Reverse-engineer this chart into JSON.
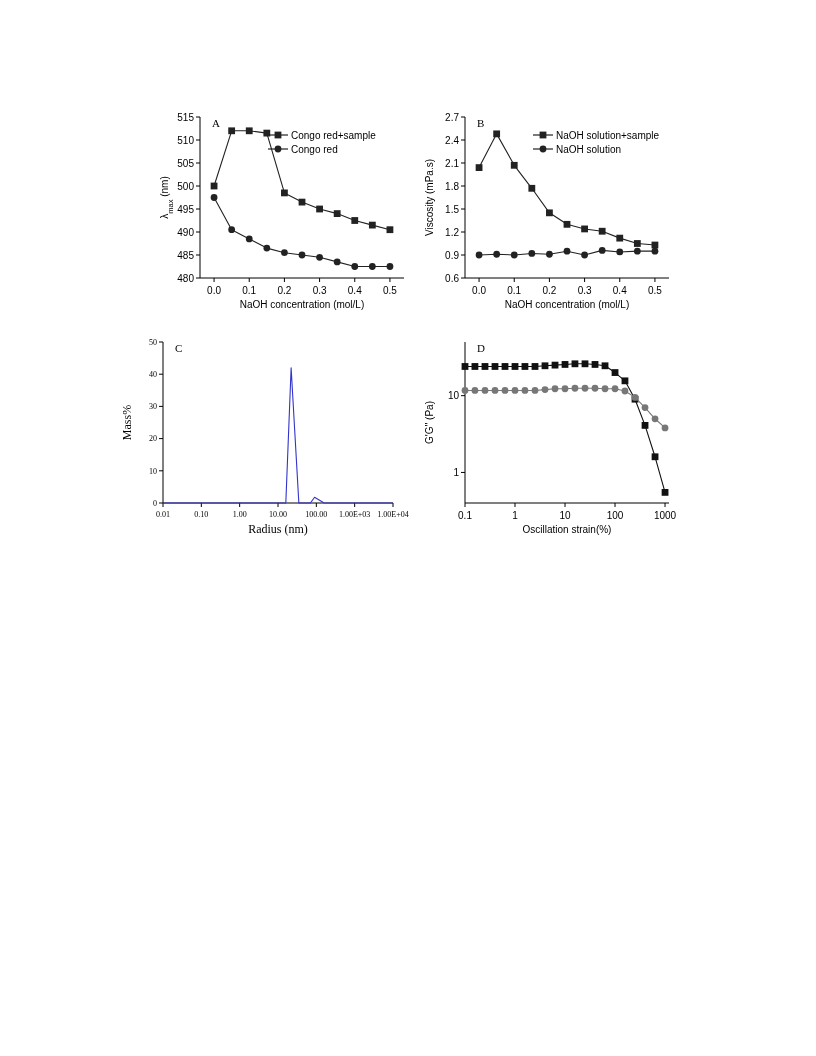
{
  "chart_data": [
    {
      "type": "line",
      "title": "A",
      "xlabel": "NaOH concentration (mol/L)",
      "ylabel": "λ$_{max}$ (nm)",
      "xlim": [
        -0.04,
        0.54
      ],
      "xticks": [
        {
          "value": 0,
          "label": "0.0"
        },
        0.1,
        0.2,
        0.3,
        0.4,
        0.5
      ],
      "ylim": [
        480,
        515
      ],
      "yticks": [
        480,
        485,
        490,
        495,
        500,
        505,
        510,
        515
      ],
      "legend": "top right",
      "line_style": "solid",
      "x": [
        0,
        0.05,
        0.1,
        0.15,
        0.2,
        0.25,
        0.3,
        0.35,
        0.4,
        0.45,
        0.5
      ],
      "series": [
        {
          "name": "Congo red+sample",
          "color": "#222222",
          "marker": "square",
          "values": [
            500,
            512,
            512,
            511.5,
            498.5,
            496.5,
            495,
            494,
            492.5,
            491.5,
            490.5
          ]
        },
        {
          "name": "Congo red",
          "color": "#222222",
          "marker": "circle",
          "values": [
            497.5,
            490.5,
            488.5,
            486.5,
            485.5,
            485,
            484.5,
            483.5,
            482.5,
            482.5,
            482.5
          ]
        }
      ]
    },
    {
      "type": "line",
      "title": "B",
      "xlabel": "NaOH concentration (mol/L)",
      "ylabel": "Viscosity (mPa.s)",
      "xlim": [
        -0.04,
        0.54
      ],
      "xticks": [
        {
          "value": 0,
          "label": "0.0"
        },
        0.1,
        0.2,
        0.3,
        0.4,
        0.5
      ],
      "ylim": [
        0.6,
        2.7
      ],
      "yticks": [
        0.6,
        0.9,
        1.2,
        1.5,
        1.8,
        2.1,
        2.4,
        2.7
      ],
      "legend": "top right",
      "line_style": "solid",
      "x": [
        0,
        0.05,
        0.1,
        0.15,
        0.2,
        0.25,
        0.3,
        0.35,
        0.4,
        0.45,
        0.5
      ],
      "series": [
        {
          "name": "NaOH solution+sample",
          "color": "#222222",
          "marker": "square",
          "values": [
            2.04,
            2.48,
            2.07,
            1.77,
            1.45,
            1.3,
            1.24,
            1.21,
            1.12,
            1.05,
            1.03
          ]
        },
        {
          "name": "NaOH solution",
          "color": "#222222",
          "marker": "circle",
          "values": [
            0.9,
            0.91,
            0.9,
            0.92,
            0.91,
            0.95,
            0.9,
            0.96,
            0.94,
            0.95,
            0.95
          ]
        }
      ]
    },
    {
      "type": "line",
      "title": "C",
      "xlabel": "Radius (nm)",
      "ylabel": "Mass%",
      "log": "x",
      "xlim": [
        0.01,
        10000
      ],
      "xticks": [
        {
          "value": 0.01,
          "label": "0.01"
        },
        {
          "value": 0.1,
          "label": "0.10"
        },
        {
          "value": 1,
          "label": "1.00"
        },
        {
          "value": 10,
          "label": "10.00"
        },
        {
          "value": 100,
          "label": "100.00"
        },
        {
          "value": 1000,
          "label": "1.00E+03"
        },
        {
          "value": 10000,
          "label": "1.00E+04"
        }
      ],
      "ylim": [
        0,
        50
      ],
      "yticks": [
        0,
        10,
        20,
        30,
        40,
        50
      ],
      "line_style": "solid",
      "x": [
        0.01,
        16,
        22,
        35,
        70,
        90,
        160,
        10000
      ],
      "series": [
        {
          "color": "#3333cc",
          "marker": "none",
          "values": [
            0,
            0,
            42,
            0,
            0,
            1.8,
            0,
            0
          ]
        }
      ]
    },
    {
      "type": "line",
      "title": "D",
      "xlabel": "Oscillation strain(%)",
      "ylabel": "G'G'' (Pa)",
      "log": "xy",
      "xlim": [
        0.1,
        1200
      ],
      "xticks": [
        0.1,
        1,
        10,
        100,
        1000
      ],
      "ylim": [
        0.4,
        50
      ],
      "yticks": [
        1,
        10
      ],
      "line_style": "solid",
      "x": [
        0.1,
        0.158,
        0.251,
        0.398,
        0.631,
        1,
        1.58,
        2.51,
        3.98,
        6.31,
        10,
        15.8,
        25.1,
        39.8,
        63.1,
        100,
        158,
        251,
        398,
        631,
        1000
      ],
      "series": [
        {
          "color": "#111111",
          "marker": "square",
          "values": [
            24,
            24,
            24,
            24,
            24,
            24,
            24,
            24,
            24.5,
            25,
            25.5,
            26,
            26,
            25.5,
            24.5,
            20,
            15.6,
            9,
            4.1,
            1.6,
            0.55
          ]
        },
        {
          "color": "#777777",
          "marker": "circle",
          "values": [
            11.7,
            11.7,
            11.7,
            11.7,
            11.7,
            11.7,
            11.7,
            11.7,
            12,
            12.3,
            12.3,
            12.5,
            12.5,
            12.5,
            12.3,
            12.3,
            11.5,
            9.5,
            7,
            5,
            3.8
          ]
        }
      ]
    }
  ]
}
